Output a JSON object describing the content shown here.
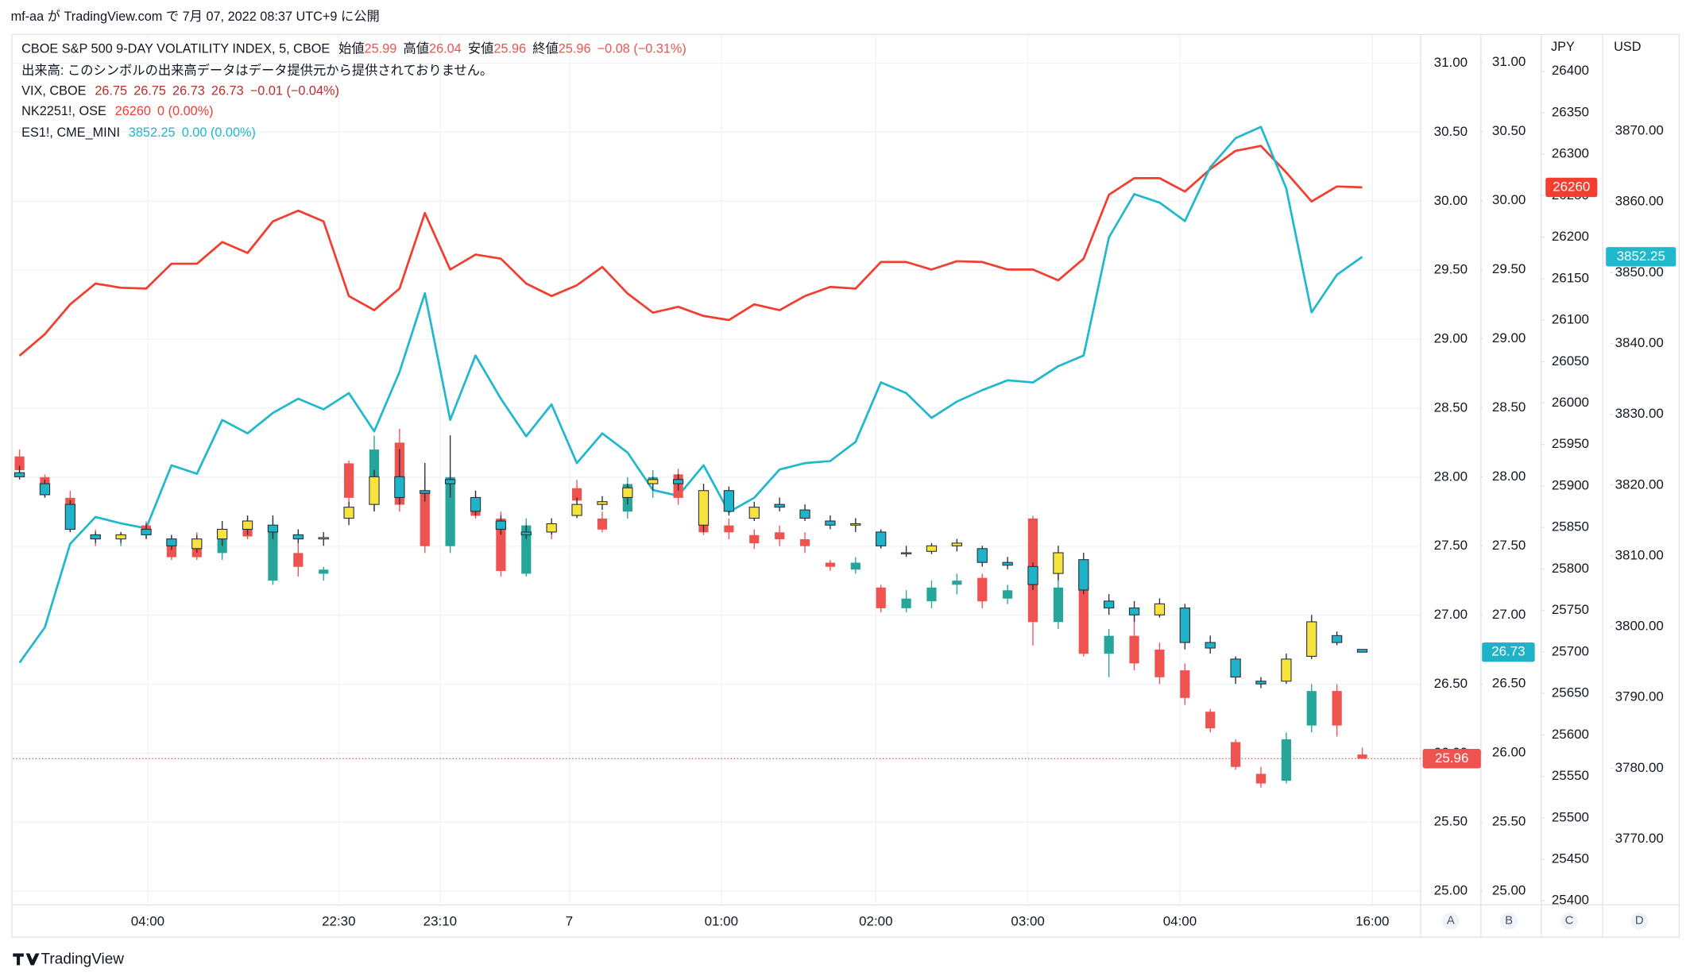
{
  "header": {
    "text": "mf-aa が TradingView.com で 7月 07, 2022 08:37 UTC+9 に公開"
  },
  "chart_data": {
    "type": "candlestick",
    "volume_note": "出来高: このシンボルの出来高データはデータ提供元から提供されておりません。",
    "ohlc_labels": [
      "始値",
      "高値",
      "安値",
      "終値"
    ],
    "grid": true,
    "xlim": [
      -0.26,
      55.3
    ],
    "xticks": [
      {
        "value": 5.06,
        "label": "04:00"
      },
      {
        "value": 12.6,
        "label": "22:30"
      },
      {
        "value": 16.6,
        "label": "23:10"
      },
      {
        "value": 21.7,
        "label": "7"
      },
      {
        "value": 27.7,
        "label": "01:00"
      },
      {
        "value": 33.8,
        "label": "02:00"
      },
      {
        "value": 39.8,
        "label": "03:00"
      },
      {
        "value": 45.8,
        "label": "04:00"
      },
      {
        "value": 53.4,
        "label": "16:00"
      }
    ],
    "ylim": [
      24.9,
      31.2
    ],
    "yticks": [
      {
        "value": 25,
        "label": "25.00"
      },
      {
        "value": 25.5,
        "label": "25.50"
      },
      {
        "value": 26,
        "label": "26.00"
      },
      {
        "value": 26.5,
        "label": "26.50"
      },
      {
        "value": 27,
        "label": "27.00"
      },
      {
        "value": 27.5,
        "label": "27.50"
      },
      {
        "value": 28,
        "label": "28.00"
      },
      {
        "value": 28.5,
        "label": "28.50"
      },
      {
        "value": 29,
        "label": "29.00"
      },
      {
        "value": 29.5,
        "label": "29.50"
      },
      {
        "value": 30,
        "label": "30.00"
      },
      {
        "value": 30.5,
        "label": "30.50"
      },
      {
        "value": 31,
        "label": "31.00"
      }
    ],
    "y2lim": [
      24.9,
      31.195
    ],
    "y2ticks": [
      {
        "value": 25,
        "label": "25.00"
      },
      {
        "value": 25.5,
        "label": "25.50"
      },
      {
        "value": 26,
        "label": "26.00"
      },
      {
        "value": 26.5,
        "label": "26.50"
      },
      {
        "value": 27,
        "label": "27.00"
      },
      {
        "value": 27.5,
        "label": "27.50"
      },
      {
        "value": 28,
        "label": "28.00"
      },
      {
        "value": 28.5,
        "label": "28.50"
      },
      {
        "value": 29,
        "label": "29.00"
      },
      {
        "value": 29.5,
        "label": "29.50"
      },
      {
        "value": 30,
        "label": "30.00"
      },
      {
        "value": 30.5,
        "label": "30.50"
      },
      {
        "value": 31,
        "label": "31.00"
      }
    ],
    "y3label": "JPY",
    "y3lim": [
      25395,
      26443
    ],
    "y3ticks": [
      25400,
      25450,
      25500,
      25550,
      25600,
      25650,
      25700,
      25750,
      25800,
      25850,
      25900,
      25950,
      26000,
      26050,
      26100,
      26150,
      26200,
      26250,
      26300,
      26350,
      26400
    ],
    "y4label": "USD",
    "y4lim": [
      3760.7,
      3883.5
    ],
    "y4ticks": [
      {
        "value": 3770,
        "label": "3770.00"
      },
      {
        "value": 3780,
        "label": "3780.00"
      },
      {
        "value": 3790,
        "label": "3790.00"
      },
      {
        "value": 3800,
        "label": "3800.00"
      },
      {
        "value": 3810,
        "label": "3810.00"
      },
      {
        "value": 3820,
        "label": "3820.00"
      },
      {
        "value": 3830,
        "label": "3830.00"
      },
      {
        "value": 3840,
        "label": "3840.00"
      },
      {
        "value": 3850,
        "label": "3850.00"
      },
      {
        "value": 3860,
        "label": "3860.00"
      },
      {
        "value": 3870,
        "label": "3870.00"
      }
    ],
    "scale_letters": [
      "A",
      "B",
      "C",
      "D"
    ],
    "series": [
      {
        "name": "CBOE S&P 500 9-DAY VOLATILITY INDEX, 5, CBOE",
        "type": "candlestick",
        "axis": "y",
        "up_color": "#26a69a",
        "down_color": "#ef5350",
        "change": "−0.08 (−0.31%)",
        "open": [
          28.15,
          28.0,
          27.85,
          27.58,
          27.55,
          27.65,
          27.52,
          27.55,
          27.45,
          27.65,
          27.25,
          27.45,
          27.3,
          28.1,
          27.85,
          28.25,
          27.9,
          27.5,
          27.85,
          27.7,
          27.3,
          27.62,
          27.92,
          27.7,
          27.75,
          27.95,
          28.02,
          27.82,
          27.65,
          27.58,
          27.6,
          27.55,
          27.38,
          27.33,
          27.2,
          27.05,
          27.1,
          27.22,
          27.27,
          27.12,
          27.7,
          26.95,
          27.2,
          26.72,
          26.85,
          26.75,
          26.6,
          26.3,
          26.08,
          25.85,
          25.8,
          26.2,
          26.45,
          25.99
        ],
        "high": [
          28.2,
          28.02,
          27.9,
          27.62,
          27.6,
          27.68,
          27.55,
          27.6,
          27.6,
          27.72,
          27.7,
          27.55,
          27.35,
          28.12,
          28.3,
          28.35,
          28.0,
          28.05,
          27.9,
          27.75,
          27.7,
          27.65,
          27.98,
          27.75,
          28.0,
          28.05,
          28.06,
          27.85,
          27.7,
          27.62,
          27.65,
          27.6,
          27.4,
          27.42,
          27.22,
          27.18,
          27.25,
          27.3,
          27.3,
          27.22,
          27.72,
          27.4,
          27.28,
          26.9,
          27.0,
          26.8,
          26.65,
          26.32,
          26.1,
          25.9,
          26.15,
          26.5,
          26.5,
          26.04
        ],
        "low": [
          28.0,
          27.85,
          27.6,
          27.5,
          27.5,
          27.55,
          27.4,
          27.4,
          27.4,
          27.55,
          27.22,
          27.28,
          27.25,
          27.8,
          27.75,
          27.75,
          27.45,
          27.45,
          27.7,
          27.28,
          27.28,
          27.55,
          27.8,
          27.6,
          27.7,
          27.85,
          27.8,
          27.58,
          27.55,
          27.48,
          27.5,
          27.45,
          27.32,
          27.3,
          27.02,
          27.02,
          27.05,
          27.15,
          27.05,
          27.08,
          26.78,
          26.9,
          26.7,
          26.55,
          26.6,
          26.5,
          26.35,
          26.15,
          25.88,
          25.75,
          25.78,
          26.15,
          26.12,
          25.96
        ],
        "close": [
          28.05,
          27.88,
          27.62,
          27.55,
          27.57,
          27.58,
          27.42,
          27.42,
          27.55,
          27.57,
          27.65,
          27.35,
          27.33,
          27.85,
          28.2,
          27.8,
          27.5,
          28.0,
          27.72,
          27.32,
          27.65,
          27.6,
          27.83,
          27.62,
          27.95,
          28.0,
          27.85,
          27.6,
          27.6,
          27.52,
          27.55,
          27.5,
          27.35,
          27.38,
          27.05,
          27.12,
          27.2,
          27.25,
          27.1,
          27.18,
          26.95,
          27.2,
          26.72,
          26.85,
          26.65,
          26.55,
          26.4,
          26.18,
          25.9,
          25.78,
          26.1,
          26.45,
          26.2,
          25.96
        ]
      },
      {
        "name": "VIX, CBOE",
        "type": "candlestick",
        "axis": "y2",
        "up_color": "#f7e23e",
        "down_color": "#1fb3c9",
        "border_color": "#2a2e39",
        "value_color": "#b5302a",
        "change": "−0.01 (−0.04%)",
        "open": [
          28.03,
          27.95,
          27.8,
          27.58,
          27.55,
          27.62,
          27.55,
          27.48,
          27.55,
          27.62,
          27.65,
          27.58,
          27.55,
          27.7,
          27.8,
          28.0,
          27.9,
          27.98,
          27.85,
          27.68,
          27.6,
          27.6,
          27.72,
          27.8,
          27.85,
          27.95,
          27.98,
          27.65,
          27.9,
          27.7,
          27.8,
          27.76,
          27.68,
          27.65,
          27.6,
          27.45,
          27.46,
          27.5,
          27.48,
          27.38,
          27.35,
          27.3,
          27.4,
          27.1,
          27.05,
          27.0,
          27.05,
          26.8,
          26.68,
          26.52,
          26.52,
          26.7,
          26.85,
          26.75
        ],
        "high": [
          28.08,
          27.98,
          27.83,
          27.6,
          27.6,
          27.66,
          27.58,
          27.58,
          27.68,
          27.72,
          27.72,
          27.62,
          27.6,
          27.82,
          28.05,
          28.2,
          28.1,
          28.3,
          27.9,
          27.72,
          27.65,
          27.7,
          27.85,
          27.86,
          27.95,
          28.0,
          28.02,
          27.95,
          27.93,
          27.82,
          27.85,
          27.8,
          27.72,
          27.7,
          27.62,
          27.5,
          27.52,
          27.55,
          27.5,
          27.42,
          27.38,
          27.5,
          27.45,
          27.15,
          27.1,
          27.12,
          27.08,
          26.85,
          26.7,
          26.55,
          26.72,
          27.0,
          26.88,
          26.75
        ],
        "low": [
          27.98,
          27.85,
          27.6,
          27.52,
          27.52,
          27.55,
          27.47,
          27.45,
          27.5,
          27.58,
          27.55,
          27.52,
          27.5,
          27.65,
          27.75,
          27.8,
          27.82,
          27.85,
          27.72,
          27.58,
          27.55,
          27.58,
          27.7,
          27.76,
          27.8,
          27.9,
          27.9,
          27.6,
          27.72,
          27.68,
          27.75,
          27.68,
          27.62,
          27.6,
          27.48,
          27.42,
          27.44,
          27.46,
          27.35,
          27.33,
          27.18,
          27.25,
          27.15,
          27.0,
          26.95,
          26.98,
          26.75,
          26.72,
          26.5,
          26.47,
          26.5,
          26.68,
          26.78,
          26.73
        ],
        "close": [
          28.0,
          27.87,
          27.62,
          27.55,
          27.58,
          27.58,
          27.5,
          27.55,
          27.62,
          27.68,
          27.6,
          27.55,
          27.56,
          27.78,
          28.0,
          27.85,
          27.88,
          27.95,
          27.75,
          27.62,
          27.58,
          27.66,
          27.8,
          27.82,
          27.92,
          27.98,
          27.95,
          27.9,
          27.75,
          27.78,
          27.78,
          27.7,
          27.65,
          27.66,
          27.5,
          27.45,
          27.5,
          27.52,
          27.38,
          27.36,
          27.22,
          27.45,
          27.18,
          27.05,
          27.0,
          27.08,
          26.8,
          26.76,
          26.55,
          26.5,
          26.68,
          26.95,
          26.8,
          26.73
        ]
      },
      {
        "name": "NK2251!, OSE",
        "type": "line",
        "axis": "y3",
        "color": "#f23d2f",
        "change": "0 (0.00%)",
        "values": [
          26057,
          26083,
          26119,
          26144,
          26139,
          26138,
          26168,
          26168,
          26194,
          26181,
          26219,
          26232,
          26219,
          26129,
          26112,
          26138,
          26229,
          26161,
          26179,
          26174,
          26144,
          26129,
          26142,
          26164,
          26132,
          26109,
          26116,
          26105,
          26100,
          26119,
          26112,
          26129,
          26140,
          26138,
          26170,
          26170,
          26161,
          26171,
          26170,
          26161,
          26161,
          26148,
          26174,
          26251,
          26271,
          26271,
          26255,
          26282,
          26304,
          26310,
          26278,
          26243,
          26261,
          26260
        ]
      },
      {
        "name": "ES1!, CME_MINI",
        "type": "line",
        "axis": "y4",
        "color": "#1fb8cc",
        "change": "0.00 (0.00%)",
        "values": [
          3794.9,
          3799.9,
          3811.7,
          3815.5,
          3814.6,
          3813.9,
          3822.8,
          3821.6,
          3829.2,
          3827.3,
          3830.2,
          3832.2,
          3830.7,
          3833,
          3827.6,
          3836,
          3847.1,
          3829.2,
          3838.3,
          3832.2,
          3826.9,
          3831.4,
          3823.1,
          3827.3,
          3824.6,
          3819.3,
          3818.5,
          3822.8,
          3816.2,
          3818.2,
          3822.2,
          3823.1,
          3823.4,
          3826.1,
          3834.5,
          3833,
          3829.5,
          3831.8,
          3833.4,
          3834.8,
          3834.5,
          3836.8,
          3838.3,
          3855,
          3861.1,
          3859.9,
          3857.3,
          3864.9,
          3869,
          3870.6,
          3861.9,
          3844.4,
          3849.7,
          3852.25
        ]
      }
    ]
  },
  "footer": {
    "brand": "TradingView"
  }
}
